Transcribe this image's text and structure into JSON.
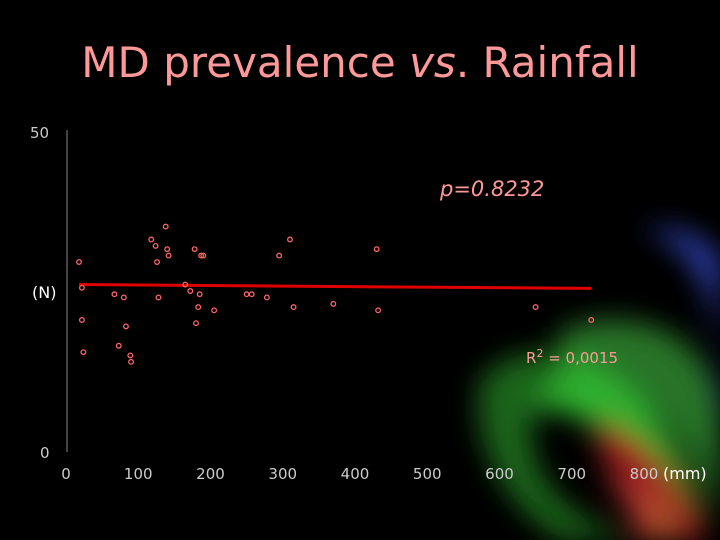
{
  "title": {
    "part1": "MD prevalence ",
    "part2": "vs",
    "part3": ". Rainfall"
  },
  "chart_data": {
    "type": "scatter",
    "title": "MD prevalence vs. Rainfall",
    "ylabel": "(N)",
    "xlabel": "(mm)",
    "xlim": [
      0,
      800
    ],
    "ylim": [
      0,
      50
    ],
    "x_ticks": [
      "0",
      "100",
      "200",
      "300",
      "400",
      "500",
      "600",
      "700",
      "800"
    ],
    "y_ticks": [
      "0",
      "50"
    ],
    "annotation_p": "p=0.8232",
    "annotation_r2_prefix": "R",
    "annotation_r2_sup": "2",
    "annotation_r2_value": " = 0,0015",
    "trendline": {
      "x": [
        18,
        727
      ],
      "y": [
        26.0,
        25.4
      ]
    },
    "grid": false,
    "legend": "none",
    "point_color": "#ff6666",
    "trend_color": "#e00000",
    "x": [
      18,
      22,
      22,
      24,
      67,
      73,
      80,
      83,
      89,
      90,
      118,
      124,
      126,
      128,
      138,
      140,
      142,
      165,
      172,
      178,
      180,
      183,
      185,
      187,
      190,
      205,
      250,
      257,
      278,
      295,
      310,
      315,
      370,
      430,
      432,
      650,
      727
    ],
    "y": [
      29.5,
      25.5,
      20.5,
      15.5,
      24.5,
      16.5,
      24,
      19.5,
      15,
      14,
      33,
      32,
      29.5,
      24,
      35,
      31.5,
      30.5,
      26,
      25,
      31.5,
      20,
      22.5,
      24.5,
      30.5,
      30.5,
      22,
      24.5,
      24.5,
      24,
      30.5,
      33,
      22.5,
      23,
      31.5,
      22,
      22.5,
      20.5
    ]
  }
}
